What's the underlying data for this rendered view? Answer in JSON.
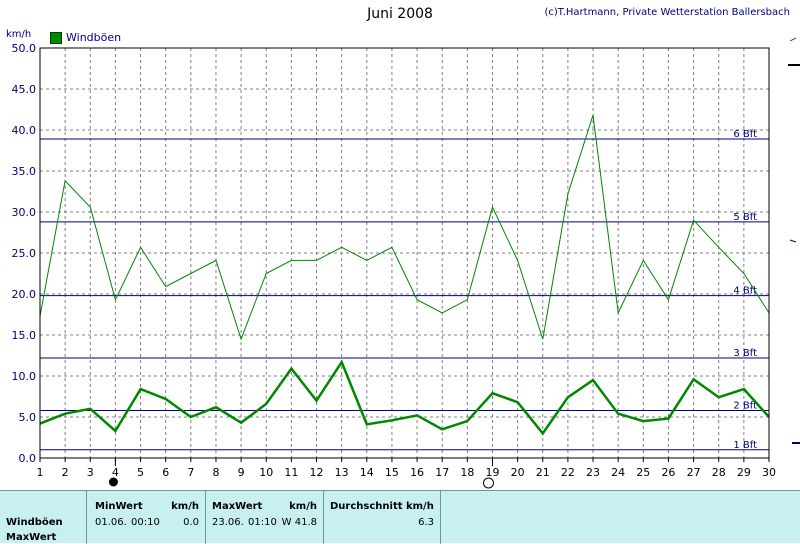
{
  "title": "Juni 2008",
  "credit": "(c)T.Hartmann, Private Wetterstation Ballersbach",
  "unit": "km/h",
  "legend_label": "Windböen",
  "colors": {
    "series": "#008800",
    "beaufort": "#000080",
    "grid": "#808080",
    "panel_bg": "#c8f0f0"
  },
  "chart_data": {
    "type": "line",
    "title": "Juni 2008",
    "ylabel": "km/h",
    "xlabel": "",
    "xlim": [
      1,
      30
    ],
    "ylim": [
      0,
      50
    ],
    "grid": true,
    "legend": "top-left",
    "x_ticks": [
      1,
      2,
      3,
      4,
      5,
      6,
      7,
      8,
      9,
      10,
      11,
      12,
      13,
      14,
      15,
      16,
      17,
      18,
      19,
      20,
      21,
      22,
      23,
      24,
      25,
      26,
      27,
      28,
      29,
      30
    ],
    "y_ticks": [
      "0.0",
      "5.0",
      "10.0",
      "15.0",
      "20.0",
      "25.0",
      "30.0",
      "35.0",
      "40.0",
      "45.0",
      "50.0"
    ],
    "beaufort_lines": [
      {
        "label": "1 Bft",
        "value": 1.0
      },
      {
        "label": "2 Bft",
        "value": 5.8
      },
      {
        "label": "3 Bft",
        "value": 12.2
      },
      {
        "label": "4 Bft",
        "value": 19.8
      },
      {
        "label": "5 Bft",
        "value": 28.8
      },
      {
        "label": "6 Bft",
        "value": 38.9
      }
    ],
    "series": [
      {
        "name": "Windböen",
        "style": "thin",
        "x": [
          1,
          2,
          3,
          4,
          5,
          6,
          7,
          8,
          9,
          10,
          11,
          12,
          13,
          14,
          15,
          16,
          17,
          18,
          19,
          20,
          21,
          22,
          23,
          24,
          25,
          26,
          27,
          28,
          29,
          30
        ],
        "values": [
          17.3,
          33.8,
          30.6,
          19.3,
          25.7,
          20.9,
          22.5,
          24.1,
          14.5,
          22.5,
          24.1,
          24.1,
          25.7,
          24.1,
          25.7,
          19.3,
          17.7,
          19.3,
          30.6,
          24.1,
          14.5,
          32.2,
          41.8,
          17.7,
          24.1,
          19.3,
          29.0,
          25.7,
          22.5,
          17.7
        ]
      },
      {
        "style": "thick",
        "x": [
          1,
          2,
          3,
          4,
          5,
          6,
          7,
          8,
          9,
          10,
          11,
          12,
          13,
          14,
          15,
          16,
          17,
          18,
          19,
          20,
          21,
          22,
          23,
          24,
          25,
          26,
          27,
          28,
          29,
          30
        ],
        "values": [
          4.2,
          5.4,
          6.0,
          3.3,
          8.4,
          7.2,
          5.0,
          6.2,
          4.3,
          6.6,
          10.9,
          7.0,
          11.7,
          4.1,
          4.6,
          5.2,
          3.5,
          4.5,
          7.9,
          6.8,
          3.0,
          7.4,
          9.5,
          5.4,
          4.5,
          4.8,
          9.6,
          7.4,
          8.4,
          5.0
        ]
      }
    ],
    "markers": [
      {
        "x": 4,
        "type": "filled-circle"
      },
      {
        "x": 19,
        "type": "open-circle"
      }
    ]
  },
  "panel": {
    "row_labels": [
      "Windböen",
      "MaxWert"
    ],
    "min_header": "MinWert",
    "min_unit": "km/h",
    "min_date": "01.06.",
    "min_time": "00:10",
    "min_value": "0.0",
    "max_header": "MaxWert",
    "max_unit": "km/h",
    "max_date": "23.06.",
    "max_time": "01:10",
    "max_value": "W 41.8",
    "avg_header": "Durchschnitt km/h",
    "avg_value": "6.3"
  }
}
